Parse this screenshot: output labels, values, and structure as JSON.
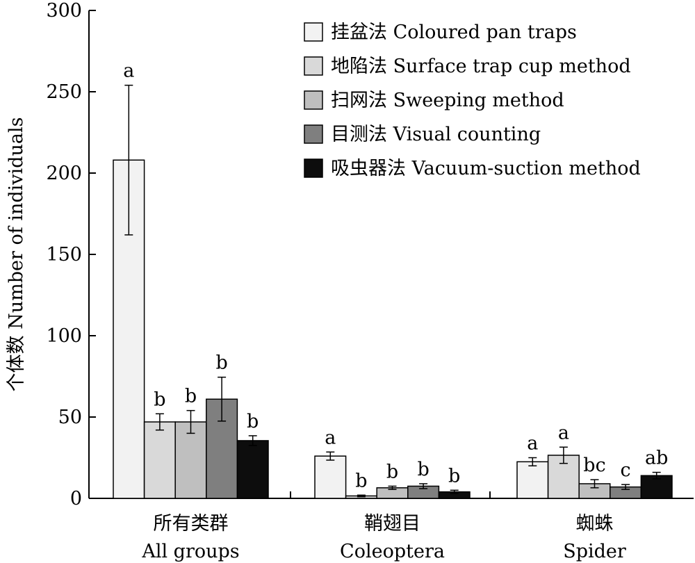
{
  "chart_data": {
    "type": "bar",
    "ylabel": "个体数 Number of individuals",
    "ylim": [
      0,
      300
    ],
    "yticks": [
      0,
      50,
      100,
      150,
      200,
      250,
      300
    ],
    "legend_position": "top-right",
    "categories": [
      {
        "cn": "所有类群",
        "en": "All groups"
      },
      {
        "cn": "鞘翅目",
        "en": "Coleoptera"
      },
      {
        "cn": "蜘蛛",
        "en": "Spider"
      }
    ],
    "series": [
      {
        "name": "挂盆法 Coloured pan traps",
        "color": "#f2f2f2",
        "values": [
          208,
          26,
          22.5
        ],
        "errors": [
          46,
          2.5,
          2.5
        ],
        "letters": [
          "a",
          "a",
          "a"
        ]
      },
      {
        "name": "地陷法 Surface trap cup method",
        "color": "#d9d9d9",
        "values": [
          47,
          1.5,
          26.5
        ],
        "errors": [
          5,
          0.5,
          5
        ],
        "letters": [
          "b",
          "b",
          "a"
        ]
      },
      {
        "name": "扫网法 Sweeping method",
        "color": "#bfbfbf",
        "values": [
          47,
          6.5,
          9
        ],
        "errors": [
          7,
          1,
          2.5
        ],
        "letters": [
          "b",
          "b",
          "bc"
        ]
      },
      {
        "name": "目测法 Visual counting",
        "color": "#7f7f7f",
        "values": [
          61,
          7.5,
          7
        ],
        "errors": [
          13.5,
          1.5,
          1.5
        ],
        "letters": [
          "b",
          "b",
          "c"
        ]
      },
      {
        "name": "吸虫器法 Vacuum-suction method",
        "color": "#0d0d0d",
        "values": [
          35.5,
          4,
          14
        ],
        "errors": [
          3,
          1,
          2
        ],
        "letters": [
          "b",
          "b",
          "ab"
        ]
      }
    ]
  }
}
